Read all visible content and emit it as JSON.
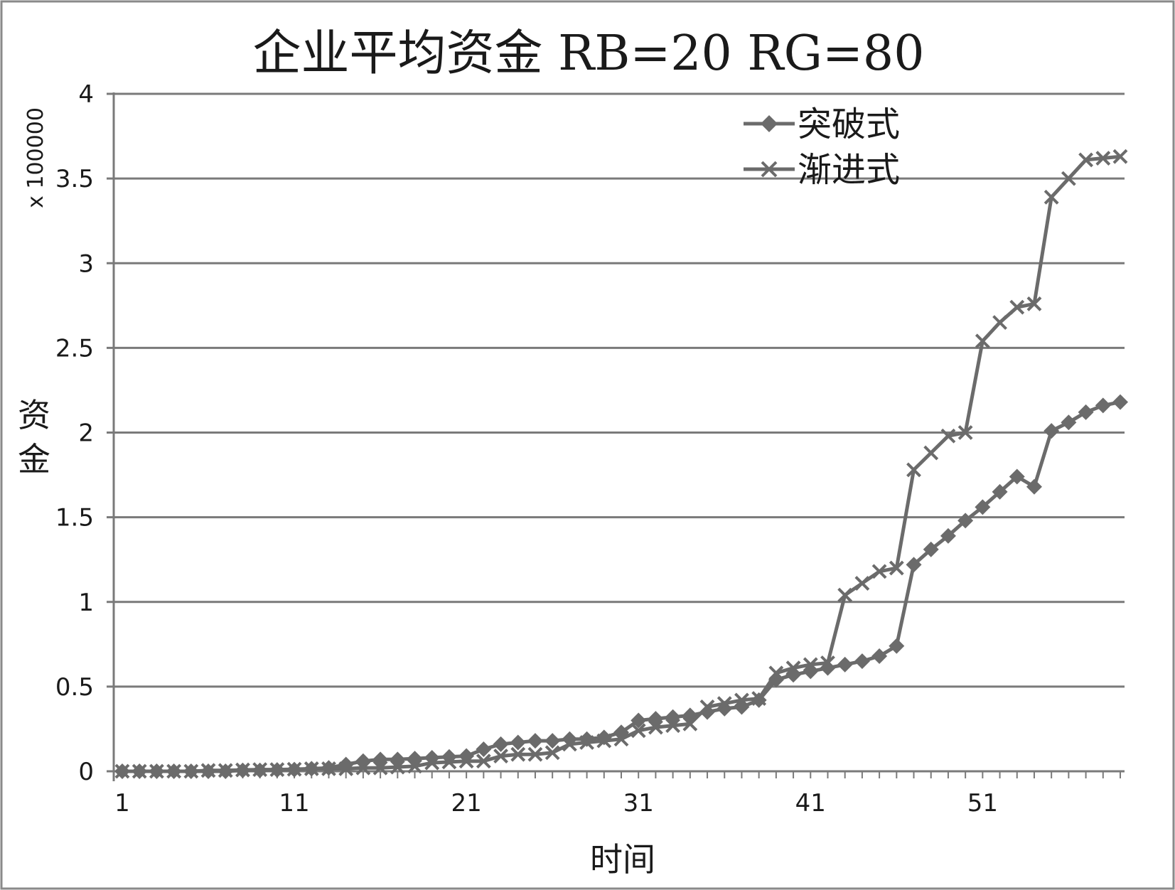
{
  "chart_data": {
    "type": "line",
    "title": "企业平均资金 RB=20 RG=80",
    "xlabel": "时间",
    "ylabel": "资金",
    "y_multiplier": "x 100000",
    "ylim": [
      0,
      4
    ],
    "y_ticks": [
      "0",
      "0.5",
      "1",
      "1.5",
      "2",
      "2.5",
      "3",
      "3.5",
      "4"
    ],
    "x_ticks": [
      "1",
      "11",
      "21",
      "31",
      "41",
      "51"
    ],
    "x_range": [
      1,
      59
    ],
    "grid": true,
    "legend_position": "top-right",
    "line_color": "#6b6b6b",
    "series": [
      {
        "name": "突破式",
        "marker": "diamond",
        "x": [
          1,
          2,
          3,
          4,
          5,
          6,
          7,
          8,
          9,
          10,
          11,
          12,
          13,
          14,
          15,
          16,
          17,
          18,
          19,
          20,
          21,
          22,
          23,
          24,
          25,
          26,
          27,
          28,
          29,
          30,
          31,
          32,
          33,
          34,
          35,
          36,
          37,
          38,
          39,
          40,
          41,
          42,
          43,
          44,
          45,
          46,
          47,
          48,
          49,
          50,
          51,
          52,
          53,
          54,
          55,
          56,
          57,
          58,
          59
        ],
        "values": [
          0,
          0,
          0,
          0,
          0,
          0,
          0,
          0.005,
          0.005,
          0.008,
          0.01,
          0.015,
          0.02,
          0.04,
          0.06,
          0.07,
          0.07,
          0.075,
          0.08,
          0.085,
          0.09,
          0.13,
          0.16,
          0.17,
          0.18,
          0.18,
          0.19,
          0.19,
          0.2,
          0.23,
          0.3,
          0.31,
          0.32,
          0.33,
          0.35,
          0.37,
          0.38,
          0.42,
          0.54,
          0.57,
          0.59,
          0.61,
          0.63,
          0.65,
          0.68,
          0.74,
          1.22,
          1.31,
          1.39,
          1.48,
          1.56,
          1.65,
          1.74,
          1.68,
          2.01,
          2.06,
          2.12,
          2.16,
          2.18
        ]
      },
      {
        "name": "渐进式",
        "marker": "x",
        "x": [
          1,
          2,
          3,
          4,
          5,
          6,
          7,
          8,
          9,
          10,
          11,
          12,
          13,
          14,
          15,
          16,
          17,
          18,
          19,
          20,
          21,
          22,
          23,
          24,
          25,
          26,
          27,
          28,
          29,
          30,
          31,
          32,
          33,
          34,
          35,
          36,
          37,
          38,
          39,
          40,
          41,
          42,
          43,
          44,
          45,
          46,
          47,
          48,
          49,
          50,
          51,
          52,
          53,
          54,
          55,
          56,
          57,
          58,
          59
        ],
        "values": [
          0,
          0,
          0,
          0,
          0,
          0.005,
          0.005,
          0.008,
          0.01,
          0.01,
          0.012,
          0.015,
          0.015,
          0.015,
          0.02,
          0.02,
          0.025,
          0.03,
          0.05,
          0.055,
          0.06,
          0.06,
          0.09,
          0.1,
          0.1,
          0.11,
          0.16,
          0.17,
          0.18,
          0.19,
          0.24,
          0.26,
          0.27,
          0.28,
          0.38,
          0.4,
          0.42,
          0.43,
          0.58,
          0.61,
          0.63,
          0.64,
          1.04,
          1.11,
          1.18,
          1.2,
          1.78,
          1.88,
          1.98,
          2.0,
          2.54,
          2.65,
          2.74,
          2.76,
          3.39,
          3.5,
          3.61,
          3.62,
          3.63
        ]
      }
    ]
  }
}
